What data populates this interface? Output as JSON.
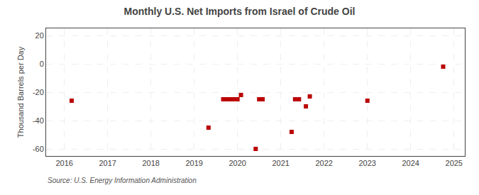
{
  "chart_data": {
    "type": "scatter",
    "title": "Monthly U.S. Net Imports from Israel of Crude Oil",
    "ylabel": "Thousand Barrels per Day",
    "annotations": [
      "Source: U.S. Energy Information Administration"
    ],
    "x": [
      2016.17,
      2019.33,
      2019.67,
      2019.75,
      2019.83,
      2019.92,
      2020.0,
      2020.08,
      2020.42,
      2020.5,
      2020.58,
      2021.25,
      2021.33,
      2021.42,
      2021.58,
      2021.67,
      2023.0,
      2024.75
    ],
    "values": [
      -26,
      -45,
      -25,
      -25,
      -25,
      -25,
      -25,
      -22,
      -60,
      -25,
      -25,
      -48,
      -25,
      -25,
      -30,
      -23,
      -26,
      -2
    ],
    "color": "#bb0000",
    "marker": "square",
    "xlim": [
      2015.58,
      2025.25
    ],
    "xticks": [
      2016,
      2017,
      2018,
      2019,
      2020,
      2021,
      2022,
      2023,
      2024,
      2025
    ],
    "ylim": [
      -65,
      25
    ],
    "yticks": [
      -60,
      -40,
      -20,
      0,
      20
    ],
    "grid": true
  }
}
